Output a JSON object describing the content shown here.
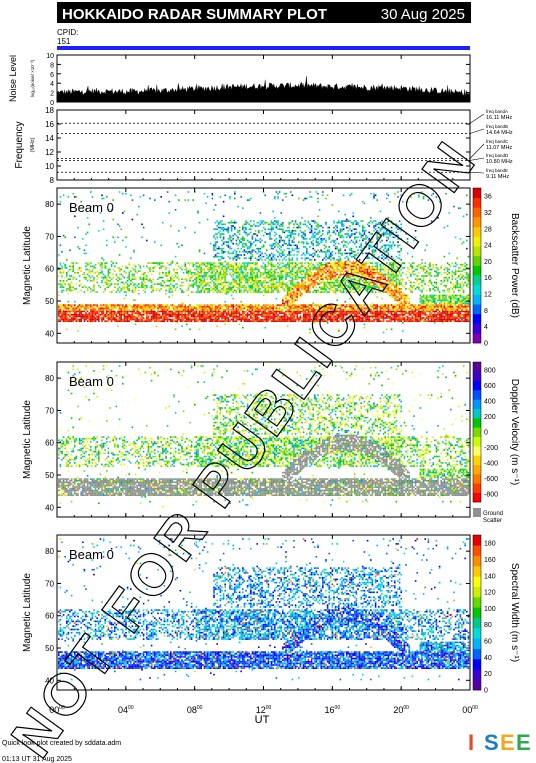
{
  "header": {
    "title": "HOKKAIDO RADAR SUMMARY PLOT",
    "date": "30 Aug 2025",
    "cpid_label": "CPID:",
    "cpid_value": "151"
  },
  "footer": {
    "line1": "Quick look plot created by sddata.adm",
    "line2": "01:13 UT 31 Aug 2025",
    "logo": "ISEE",
    "logo_colors": [
      "#e8482c",
      "#1a7fc1",
      "#f3a81d",
      "#2fa84f"
    ]
  },
  "watermark": "NOT FOR PUBLICATION",
  "colors": {
    "header_bg": "#000000",
    "cpid_bar": "#2020ff",
    "ground_scatter": "#909090"
  },
  "chart_data": [
    {
      "type": "area",
      "panel": "noise",
      "ylabel": "Noise Level",
      "ylabel_sub": "log₁₀(noise/ ×10⁻³)",
      "ylim": [
        0,
        10
      ],
      "yticks": [
        "0",
        "2",
        "4",
        "6",
        "8",
        "10"
      ],
      "x": [
        0,
        2,
        4,
        6,
        8,
        10,
        12,
        14,
        16,
        18,
        20,
        22,
        24
      ],
      "values": [
        2.0,
        2.3,
        2.2,
        2.4,
        2.8,
        3.2,
        3.4,
        3.5,
        3.3,
        3.1,
        3.0,
        2.4,
        1.8
      ]
    },
    {
      "type": "line",
      "panel": "frequency",
      "ylabel": "Frequency",
      "ylabel_sub": "(MHz)",
      "ylim": [
        8,
        18
      ],
      "yticks": [
        "8",
        "10",
        "12",
        "14",
        "16",
        "18"
      ],
      "bands": [
        {
          "name": "freq bandA",
          "value": 16.11,
          "label": "16.11 MHz"
        },
        {
          "name": "freq bandB",
          "value": 14.64,
          "label": "14.64 MHz"
        },
        {
          "name": "freq bandC",
          "value": 11.07,
          "label": "11.07 MHz"
        },
        {
          "name": "freq bandD",
          "value": 10.8,
          "label": "10.80 MHz"
        },
        {
          "name": "freq bandE",
          "value": 9.11,
          "label": "9.11 MHz"
        }
      ]
    },
    {
      "type": "heatmap",
      "panel": "power",
      "beam": "Beam  0",
      "ylabel": "Magnetic Latitude",
      "ylim": [
        37,
        85
      ],
      "yticks": [
        "40",
        "50",
        "60",
        "70",
        "80"
      ],
      "colorbar_label": "Backscatter Power (dB)",
      "colorbar_ticks": [
        "0",
        "4",
        "8",
        "12",
        "16",
        "20",
        "24",
        "28",
        "32",
        "36"
      ],
      "colorbar_range": [
        0,
        38
      ]
    },
    {
      "type": "heatmap",
      "panel": "velocity",
      "beam": "Beam  0",
      "ylabel": "Magnetic Latitude",
      "ylim": [
        37,
        85
      ],
      "yticks": [
        "40",
        "50",
        "60",
        "70",
        "80"
      ],
      "colorbar_label": "Doppler Velocity (m s⁻¹)",
      "colorbar_ticks": [
        "-800",
        "-600",
        "-400",
        "-200",
        "0",
        "200",
        "400",
        "600",
        "800"
      ],
      "colorbar_range": [
        -900,
        900
      ],
      "gs_label_1": "Ground",
      "gs_label_2": "Scatter"
    },
    {
      "type": "heatmap",
      "panel": "width",
      "beam": "Beam  0",
      "ylabel": "Magnetic Latitude",
      "ylim": [
        37,
        85
      ],
      "yticks": [
        "40",
        "50",
        "60",
        "70",
        "80"
      ],
      "colorbar_label": "Spectral Width (m s⁻¹)",
      "colorbar_ticks": [
        "0",
        "20",
        "40",
        "60",
        "80",
        "100",
        "120",
        "140",
        "160",
        "180"
      ],
      "colorbar_range": [
        0,
        190
      ]
    }
  ],
  "xaxis": {
    "label": "UT",
    "range": [
      0,
      24
    ],
    "ticks": [
      {
        "h": "00",
        "m": "00"
      },
      {
        "h": "04",
        "m": "00"
      },
      {
        "h": "08",
        "m": "00"
      },
      {
        "h": "12",
        "m": "00"
      },
      {
        "h": "16",
        "m": "00"
      },
      {
        "h": "20",
        "m": "00"
      },
      {
        "h": "00",
        "m": "00"
      }
    ]
  }
}
